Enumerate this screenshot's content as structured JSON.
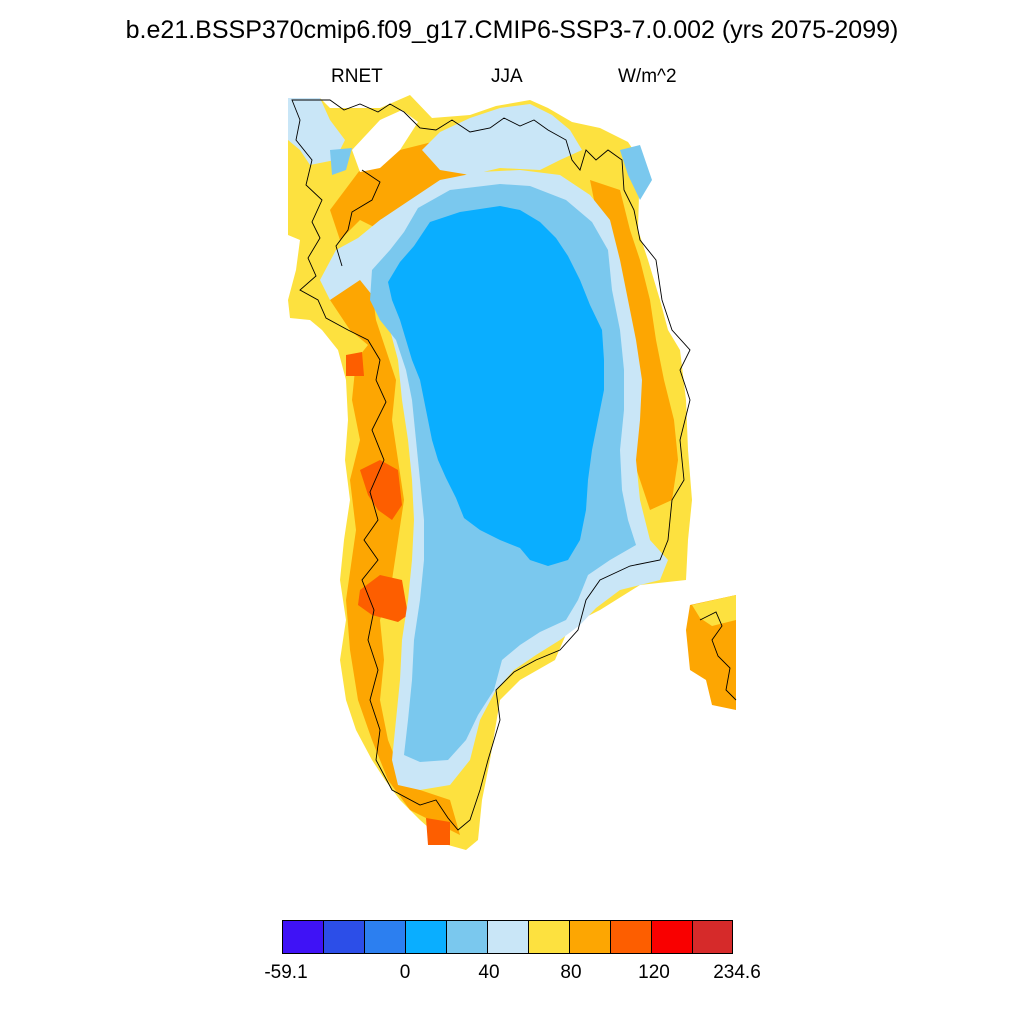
{
  "title": "b.e21.BSSP370cmip6.f09_g17.CMIP6-SSP3-7.0.002 (yrs 2075-2099)",
  "subtitle": {
    "left": "RNET",
    "center": "JJA",
    "right": "W/m^2"
  },
  "colorbar": {
    "colors": [
      "#3f12f6",
      "#2c4ee8",
      "#2c7ff0",
      "#0aaeff",
      "#7ac8ee",
      "#c9e6f7",
      "#fde13f",
      "#fda602",
      "#fd5e00",
      "#f90000",
      "#d62a2a"
    ],
    "labels": [
      "-59.1",
      "0",
      "40",
      "80",
      "120",
      "234.6"
    ]
  },
  "map": {
    "region": "Greenland",
    "coastline_color": "#000000"
  }
}
